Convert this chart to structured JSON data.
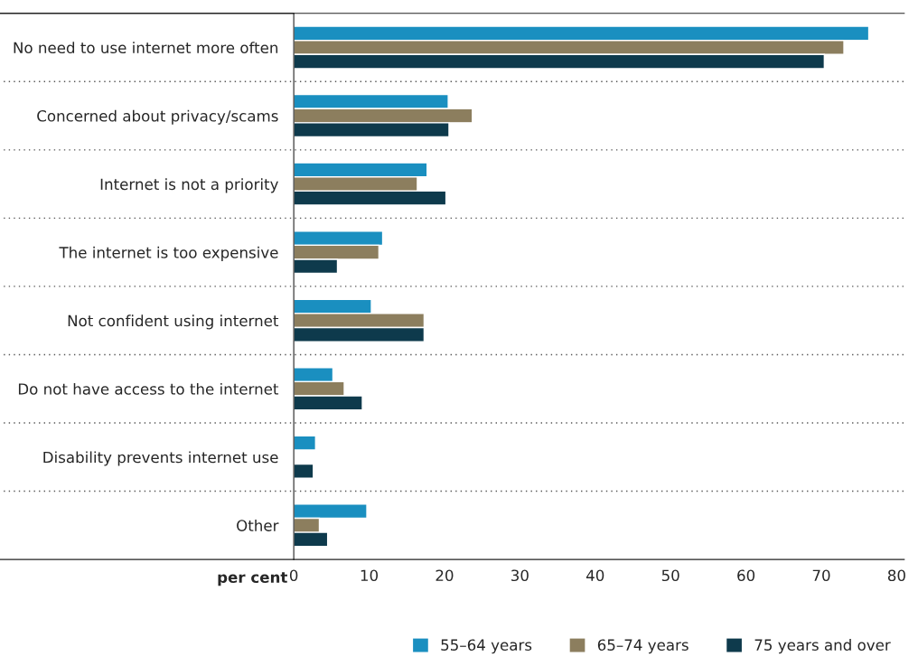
{
  "chart_data": {
    "type": "bar",
    "orientation": "horizontal",
    "xlabel": "per cent",
    "categories": [
      "No need to use internet more often",
      "Concerned about privacy/scams",
      "Internet is not a priority",
      "The internet is too expensive",
      "Not confident using internet",
      "Do not have access to the internet",
      "Disability prevents internet use",
      "Other"
    ],
    "series": [
      {
        "name": "55–64 years",
        "color": "#1a8fc0",
        "values": [
          76.3,
          20.5,
          17.7,
          11.8,
          10.3,
          5.2,
          2.9,
          9.7
        ]
      },
      {
        "name": "65–74 years",
        "color": "#8c7e5e",
        "values": [
          73.0,
          23.7,
          16.4,
          11.3,
          17.3,
          6.7,
          null,
          3.4
        ]
      },
      {
        "name": "75 years and over",
        "color": "#0e3a4c",
        "values": [
          70.4,
          20.6,
          20.2,
          5.8,
          17.3,
          9.1,
          2.6,
          4.5
        ]
      }
    ],
    "xlim": [
      0,
      81
    ],
    "xticks": [
      0,
      10,
      20,
      30,
      40,
      50,
      60,
      70,
      80
    ],
    "grid": "y",
    "legend": "bottom"
  }
}
